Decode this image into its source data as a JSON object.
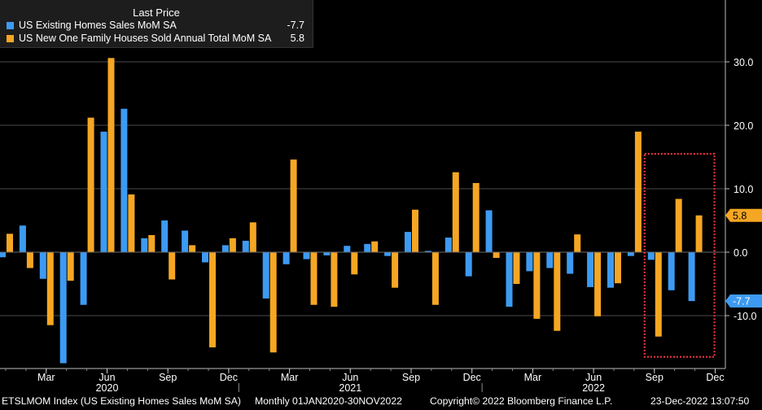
{
  "legend": {
    "title": "Last Price",
    "entries": [
      {
        "name": "US Existing Homes Sales MoM SA",
        "value": "-7.7",
        "color": "#3d9af2"
      },
      {
        "name": "US New One Family Houses Sold Annual Total MoM SA",
        "value": "5.8",
        "color": "#f5a623"
      }
    ]
  },
  "footer": {
    "left": "ETSLMOM Index (US Existing Homes Sales MoM SA)",
    "middle": "Monthly 01JAN2020-30NOV2022",
    "copyright": "Copyright© 2022 Bloomberg Finance L.P.",
    "timestamp": "23-Dec-2022 13:07:50"
  },
  "colors": {
    "existing": "#3d9af2",
    "new": "#f5a623",
    "highlight_box": "#e8333f",
    "grid": "#4a4a4a"
  },
  "chart_data": {
    "type": "bar",
    "categories": [
      "Jan 2020",
      "Feb 2020",
      "Mar 2020",
      "Apr 2020",
      "May 2020",
      "Jun 2020",
      "Jul 2020",
      "Aug 2020",
      "Sep 2020",
      "Oct 2020",
      "Nov 2020",
      "Dec 2020",
      "Jan 2021",
      "Feb 2021",
      "Mar 2021",
      "Apr 2021",
      "May 2021",
      "Jun 2021",
      "Jul 2021",
      "Aug 2021",
      "Sep 2021",
      "Oct 2021",
      "Nov 2021",
      "Dec 2021",
      "Jan 2022",
      "Feb 2022",
      "Mar 2022",
      "Apr 2022",
      "May 2022",
      "Jun 2022",
      "Jul 2022",
      "Aug 2022",
      "Sep 2022",
      "Oct 2022",
      "Nov 2022"
    ],
    "series": [
      {
        "name": "US Existing Homes Sales MoM SA",
        "values": [
          -0.8,
          4.2,
          -4.2,
          -17.5,
          -8.3,
          19.0,
          22.6,
          2.2,
          5.0,
          3.4,
          -1.6,
          1.1,
          1.8,
          -7.3,
          -1.9,
          -1.1,
          -0.5,
          1.0,
          1.3,
          -0.6,
          3.2,
          0.2,
          2.3,
          -3.8,
          6.6,
          -8.6,
          -3.0,
          -2.5,
          -3.4,
          -5.5,
          -5.6,
          -0.6,
          -1.2,
          -6.0,
          -7.7
        ]
      },
      {
        "name": "US New One Family Houses Sold Annual Total MoM SA",
        "values": [
          2.9,
          -2.5,
          -11.5,
          -4.5,
          21.2,
          30.6,
          9.1,
          2.7,
          -4.3,
          1.1,
          -15.0,
          2.2,
          4.7,
          -15.8,
          14.6,
          -8.3,
          -8.6,
          -3.5,
          1.7,
          -5.6,
          6.7,
          -8.3,
          12.6,
          10.9,
          -0.9,
          -5.0,
          -10.5,
          -12.4,
          2.8,
          -10.1,
          -4.9,
          19.0,
          -13.3,
          8.4,
          5.8
        ]
      }
    ],
    "ylim": [
      -17.5,
      38
    ],
    "yticks": [
      -10.0,
      0.0,
      10.0,
      20.0,
      30.0
    ],
    "last_values": [
      {
        "series": 0,
        "label": "-7.7"
      },
      {
        "series": 1,
        "label": "5.8"
      }
    ],
    "xaxis": {
      "month_labels": [
        {
          "i": 2,
          "label": "Mar"
        },
        {
          "i": 5,
          "label": "Jun"
        },
        {
          "i": 8,
          "label": "Sep"
        },
        {
          "i": 11,
          "label": "Dec"
        },
        {
          "i": 14,
          "label": "Mar"
        },
        {
          "i": 17,
          "label": "Jun"
        },
        {
          "i": 20,
          "label": "Sep"
        },
        {
          "i": 23,
          "label": "Dec"
        },
        {
          "i": 26,
          "label": "Mar"
        },
        {
          "i": 29,
          "label": "Jun"
        },
        {
          "i": 32,
          "label": "Sep"
        },
        {
          "i": 35,
          "label": "Dec"
        }
      ],
      "year_labels": [
        {
          "i": 5,
          "label": "2020"
        },
        {
          "i": 17,
          "label": "2021"
        },
        {
          "i": 29,
          "label": "2022"
        }
      ]
    },
    "highlight": {
      "from_index": 32,
      "to_index": 34,
      "from_value": 15.5,
      "to_value": -16.5
    },
    "grid": true,
    "legend_position": "top-left"
  }
}
